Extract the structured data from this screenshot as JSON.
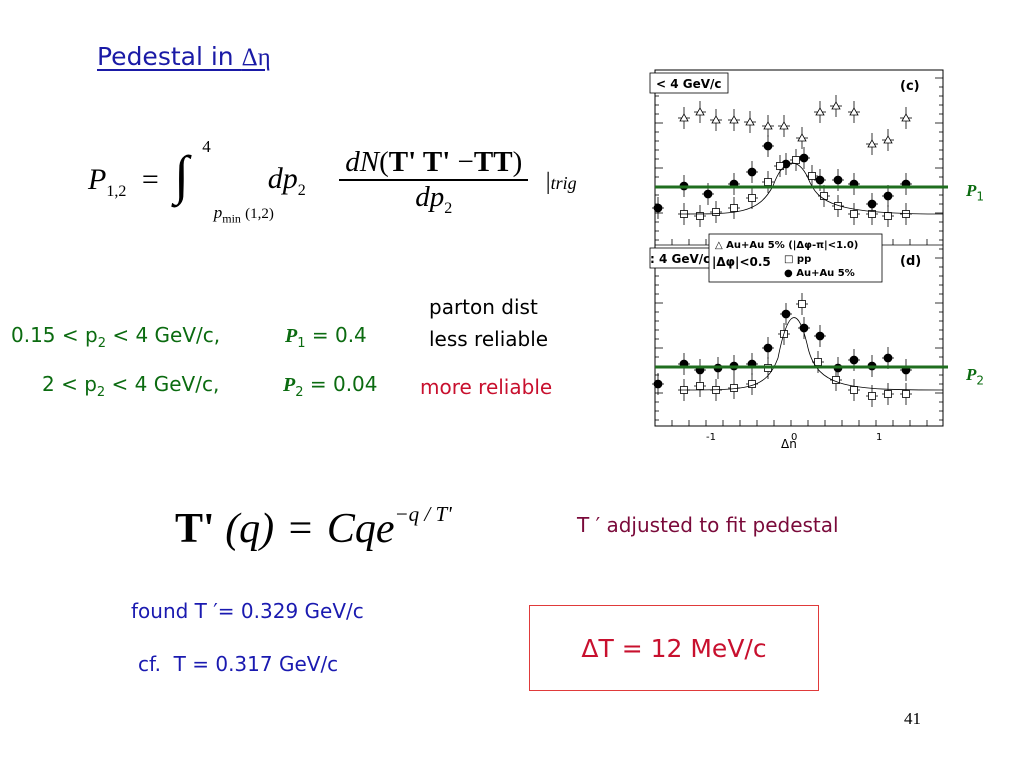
{
  "slide": {
    "title_prefix": "Pedestal in ",
    "title_symbol": "Δη",
    "page_number": "41"
  },
  "formula1": {
    "lhs_P": "P",
    "lhs_sub": "1,2",
    "equals": "=",
    "integral": "∫",
    "upper_limit": "4",
    "lower_limit_p": "p",
    "lower_limit_sub": "min",
    "lower_limit_arg": "(1,2)",
    "dp": "dp",
    "dp_sub": "2",
    "numerator_dN": "dN",
    "numerator_open": "(",
    "numerator_terms": "T' T' ",
    "numerator_minus": "−",
    "numerator_TT": "TT",
    "numerator_close": ")",
    "denominator_dp": "dp",
    "denominator_sub": "2",
    "bar": "|",
    "trig": "trig"
  },
  "ranges": [
    {
      "condition_pre": "0.15 < p",
      "condition_sub": "2",
      "condition_post": " < 4 GeV/c,",
      "p_label": "P",
      "p_sub": "1",
      "value": " = 0.4"
    },
    {
      "condition_pre": "2 < p",
      "condition_sub": "2",
      "condition_post": " < 4 GeV/c,",
      "p_label": "P",
      "p_sub": "2",
      "value": " = 0.04"
    }
  ],
  "notes": {
    "parton_line1": "parton dist",
    "parton_line2": "less reliable",
    "more_reliable": "more reliable",
    "t_adjusted": "T ′ adjusted to fit pedestal",
    "found": "found T ′= 0.329 GeV/c",
    "cf_prefix": "cf.  ",
    "cf_value": "T = 0.317 GeV/c",
    "delta_T": "ΔT = 12 MeV/c"
  },
  "formula2": {
    "lhs": "T'",
    "arg": "(q)",
    "equals": "=",
    "rhs": "Cqe",
    "exponent": "−q / T'"
  },
  "figure": {
    "panel_top_legend": "< 4 GeV/c",
    "panel_top_tag": "(c)",
    "panel_bottom_legend": ": 4 GeV/c",
    "panel_bottom_tag": "(d)",
    "legend_line1": "△ Au+Au 5% (|Δφ-π|<1.0)",
    "legend_line2_left": "|Δφ|<0.5",
    "legend_line2_right": "□ pp",
    "legend_line3": "● Au+Au 5%",
    "x_tick_neg1": "-1",
    "x_tick_0": "0",
    "x_tick_1": "1",
    "x_axis_label": "Δη",
    "p1_label": "P",
    "p1_sub": "1",
    "p2_label": "P",
    "p2_sub": "2",
    "line_color": "#1f6e1f"
  }
}
